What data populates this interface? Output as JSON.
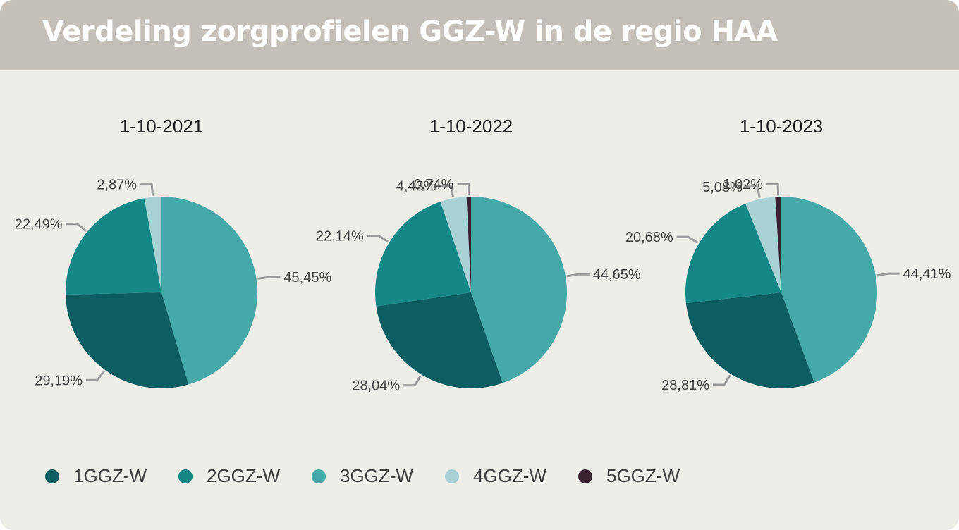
{
  "title": "Verdeling zorgprofielen GGZ-W in de regio HAA",
  "legend": [
    {
      "label": "1GGZ-W",
      "color": "#0d5e63"
    },
    {
      "label": "2GGZ-W",
      "color": "#158787"
    },
    {
      "label": "3GGZ-W",
      "color": "#45a9aa"
    },
    {
      "label": "4GGZ-W",
      "color": "#a8d2d5"
    },
    {
      "label": "5GGZ-W",
      "color": "#3a2231"
    }
  ],
  "chart_data": [
    {
      "type": "pie",
      "title": "1-10-2021",
      "categories": [
        "1GGZ-W",
        "2GGZ-W",
        "3GGZ-W",
        "4GGZ-W"
      ],
      "values": [
        29.19,
        22.49,
        45.45,
        2.87
      ],
      "labels": [
        "29,19%",
        "22,49%",
        "45,45%",
        "2,87%"
      ]
    },
    {
      "type": "pie",
      "title": "1-10-2022",
      "categories": [
        "1GGZ-W",
        "2GGZ-W",
        "3GGZ-W",
        "4GGZ-W",
        "5GGZ-W"
      ],
      "values": [
        28.04,
        22.14,
        44.65,
        4.43,
        0.74
      ],
      "labels": [
        "28,04%",
        "22,14%",
        "44,65%",
        "4,43%",
        "0,74%"
      ]
    },
    {
      "type": "pie",
      "title": "1-10-2023",
      "categories": [
        "1GGZ-W",
        "2GGZ-W",
        "3GGZ-W",
        "4GGZ-W",
        "5GGZ-W"
      ],
      "values": [
        28.81,
        20.68,
        44.41,
        5.08,
        1.02
      ],
      "labels": [
        "28,81%",
        "20,68%",
        "44,41%",
        "5,08%",
        "1,02%"
      ]
    }
  ]
}
